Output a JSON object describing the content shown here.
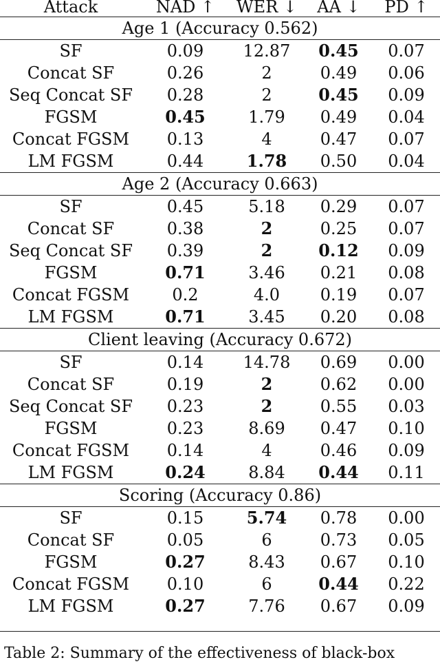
{
  "table": {
    "headers": [
      "Attack",
      "NAD ↑",
      "WER ↓",
      "AA ↓",
      "PD ↑"
    ],
    "sections": [
      {
        "title": "Age 1 (Accuracy 0.562)",
        "rows": [
          {
            "cells": [
              "SF",
              "0.09",
              "12.87",
              "0.45",
              "0.07"
            ],
            "bold": [
              false,
              false,
              false,
              true,
              false
            ]
          },
          {
            "cells": [
              "Concat SF",
              "0.26",
              "2",
              "0.49",
              "0.06"
            ],
            "bold": [
              false,
              false,
              false,
              false,
              false
            ]
          },
          {
            "cells": [
              "Seq Concat SF",
              "0.28",
              "2",
              "0.45",
              "0.09"
            ],
            "bold": [
              false,
              false,
              false,
              true,
              false
            ]
          },
          {
            "cells": [
              "FGSM",
              "0.45",
              "1.79",
              "0.49",
              "0.04"
            ],
            "bold": [
              false,
              true,
              false,
              false,
              false
            ]
          },
          {
            "cells": [
              "Concat FGSM",
              "0.13",
              "4",
              "0.47",
              "0.07"
            ],
            "bold": [
              false,
              false,
              false,
              false,
              false
            ]
          },
          {
            "cells": [
              "LM FGSM",
              "0.44",
              "1.78",
              "0.50",
              "0.04"
            ],
            "bold": [
              false,
              false,
              true,
              false,
              false
            ]
          }
        ]
      },
      {
        "title": "Age 2 (Accuracy 0.663)",
        "rows": [
          {
            "cells": [
              "SF",
              "0.45",
              "5.18",
              "0.29",
              "0.07"
            ],
            "bold": [
              false,
              false,
              false,
              false,
              false
            ]
          },
          {
            "cells": [
              "Concat SF",
              "0.38",
              "2",
              "0.25",
              "0.07"
            ],
            "bold": [
              false,
              false,
              true,
              false,
              false
            ]
          },
          {
            "cells": [
              "Seq Concat SF",
              "0.39",
              "2",
              "0.12",
              "0.09"
            ],
            "bold": [
              false,
              false,
              true,
              true,
              false
            ]
          },
          {
            "cells": [
              "FGSM",
              "0.71",
              "3.46",
              "0.21",
              "0.08"
            ],
            "bold": [
              false,
              true,
              false,
              false,
              false
            ]
          },
          {
            "cells": [
              "Concat FGSM",
              "0.2",
              "4.0",
              "0.19",
              "0.07"
            ],
            "bold": [
              false,
              false,
              false,
              false,
              false
            ]
          },
          {
            "cells": [
              "LM FGSM",
              "0.71",
              "3.45",
              "0.20",
              "0.08"
            ],
            "bold": [
              false,
              true,
              false,
              false,
              false
            ]
          }
        ]
      },
      {
        "title": "Client leaving (Accuracy 0.672)",
        "rows": [
          {
            "cells": [
              "SF",
              "0.14",
              "14.78",
              "0.69",
              "0.00"
            ],
            "bold": [
              false,
              false,
              false,
              false,
              false
            ]
          },
          {
            "cells": [
              "Concat SF",
              "0.19",
              "2",
              "0.62",
              "0.00"
            ],
            "bold": [
              false,
              false,
              true,
              false,
              false
            ]
          },
          {
            "cells": [
              "Seq Concat SF",
              "0.23",
              "2",
              "0.55",
              "0.03"
            ],
            "bold": [
              false,
              false,
              true,
              false,
              false
            ]
          },
          {
            "cells": [
              "FGSM",
              "0.23",
              "8.69",
              "0.47",
              "0.10"
            ],
            "bold": [
              false,
              false,
              false,
              false,
              false
            ]
          },
          {
            "cells": [
              "Concat FGSM",
              "0.14",
              "4",
              "0.46",
              "0.09"
            ],
            "bold": [
              false,
              false,
              false,
              false,
              false
            ]
          },
          {
            "cells": [
              "LM FGSM",
              "0.24",
              "8.84",
              "0.44",
              "0.11"
            ],
            "bold": [
              false,
              true,
              false,
              true,
              false
            ]
          }
        ]
      },
      {
        "title": "Scoring (Accuracy 0.86)",
        "rows": [
          {
            "cells": [
              "SF",
              "0.15",
              "5.74",
              "0.78",
              "0.00"
            ],
            "bold": [
              false,
              false,
              true,
              false,
              false
            ]
          },
          {
            "cells": [
              "Concat SF",
              "0.05",
              "6",
              "0.73",
              "0.05"
            ],
            "bold": [
              false,
              false,
              false,
              false,
              false
            ]
          },
          {
            "cells": [
              "FGSM",
              "0.27",
              "8.43",
              "0.67",
              "0.10"
            ],
            "bold": [
              false,
              true,
              false,
              false,
              false
            ]
          },
          {
            "cells": [
              "Concat FGSM",
              "0.10",
              "6",
              "0.44",
              "0.22"
            ],
            "bold": [
              false,
              false,
              false,
              true,
              false
            ]
          },
          {
            "cells": [
              "LM FGSM",
              "0.27",
              "7.76",
              "0.67",
              "0.09"
            ],
            "bold": [
              false,
              true,
              false,
              false,
              false
            ]
          }
        ]
      }
    ]
  },
  "caption": "Table 2: Summary of the effectiveness of black-box"
}
